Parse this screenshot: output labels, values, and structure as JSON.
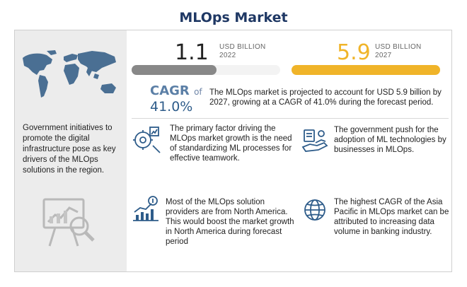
{
  "title": "MLOps Market",
  "stats": [
    {
      "value": "1.1",
      "unit": "USD BILLION",
      "year": "2022",
      "bar_fill_fraction": 0.57,
      "color": "#888888"
    },
    {
      "value": "5.9",
      "unit": "USD BILLION",
      "year": "2027",
      "bar_fill_fraction": 1.0,
      "color": "#f0b429"
    }
  ],
  "cagr": {
    "label": "CAGR",
    "of": "of",
    "value": "41.0%"
  },
  "summary": "The MLOps market is projected to account for USD 5.9 billion by 2027, growing at a CAGR of 41.0% during the forecast period.",
  "left_text": "Government initiatives to promote the digital infrastructure pose as key drivers of the MLOps solutions in the region.",
  "cards": [
    {
      "text": " The primary factor driving the MLOps market growth is the need of standardizing ML processes for effective teamwork.",
      "icon": "ml-process-icon"
    },
    {
      "text": "The government push for the adoption of ML technologies by businesses in MLOps.",
      "icon": "government-push-icon"
    },
    {
      "text": "Most of the MLOps solution providers are from North America. This would boost the market growth in North America during forecast period",
      "icon": "growth-chart-icon"
    },
    {
      "text": "The highest CAGR of the Asia Pacific in MLOps market can be attributed to increasing data volume in banking industry.",
      "icon": "globe-icon"
    }
  ],
  "colors": {
    "title": "#1f3864",
    "accent_orange": "#f0b429",
    "grey_bar": "#888888",
    "cagr_blue": "#5b7fa6"
  }
}
